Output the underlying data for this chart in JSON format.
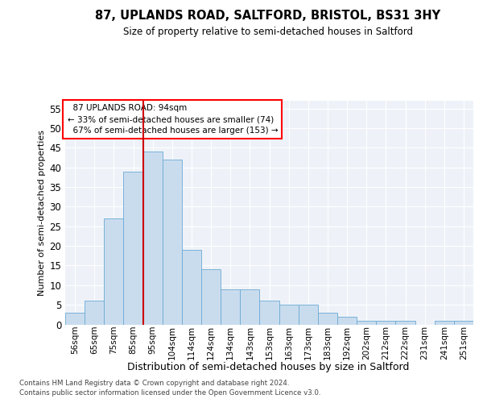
{
  "title": "87, UPLANDS ROAD, SALTFORD, BRISTOL, BS31 3HY",
  "subtitle": "Size of property relative to semi-detached houses in Saltford",
  "xlabel": "Distribution of semi-detached houses by size in Saltford",
  "ylabel": "Number of semi-detached properties",
  "footer1": "Contains HM Land Registry data © Crown copyright and database right 2024.",
  "footer2": "Contains public sector information licensed under the Open Government Licence v3.0.",
  "categories": [
    "56sqm",
    "65sqm",
    "75sqm",
    "85sqm",
    "95sqm",
    "104sqm",
    "114sqm",
    "124sqm",
    "134sqm",
    "143sqm",
    "153sqm",
    "163sqm",
    "173sqm",
    "183sqm",
    "192sqm",
    "202sqm",
    "212sqm",
    "222sqm",
    "231sqm",
    "241sqm",
    "251sqm"
  ],
  "values": [
    3,
    6,
    27,
    39,
    44,
    42,
    19,
    14,
    9,
    9,
    6,
    5,
    5,
    3,
    2,
    1,
    1,
    1,
    0,
    1,
    1
  ],
  "bar_color": "#c9dcee",
  "bar_edge_color": "#6aaad4",
  "property_label": "87 UPLANDS ROAD: 94sqm",
  "smaller_pct": 33,
  "smaller_count": 74,
  "larger_pct": 67,
  "larger_count": 153,
  "vline_bin_index": 4,
  "vline_color": "#cc0000",
  "ylim": [
    0,
    57
  ],
  "yticks": [
    0,
    5,
    10,
    15,
    20,
    25,
    30,
    35,
    40,
    45,
    50,
    55
  ],
  "bg_color": "#eef2f8",
  "fig_bg_color": "#ffffff"
}
